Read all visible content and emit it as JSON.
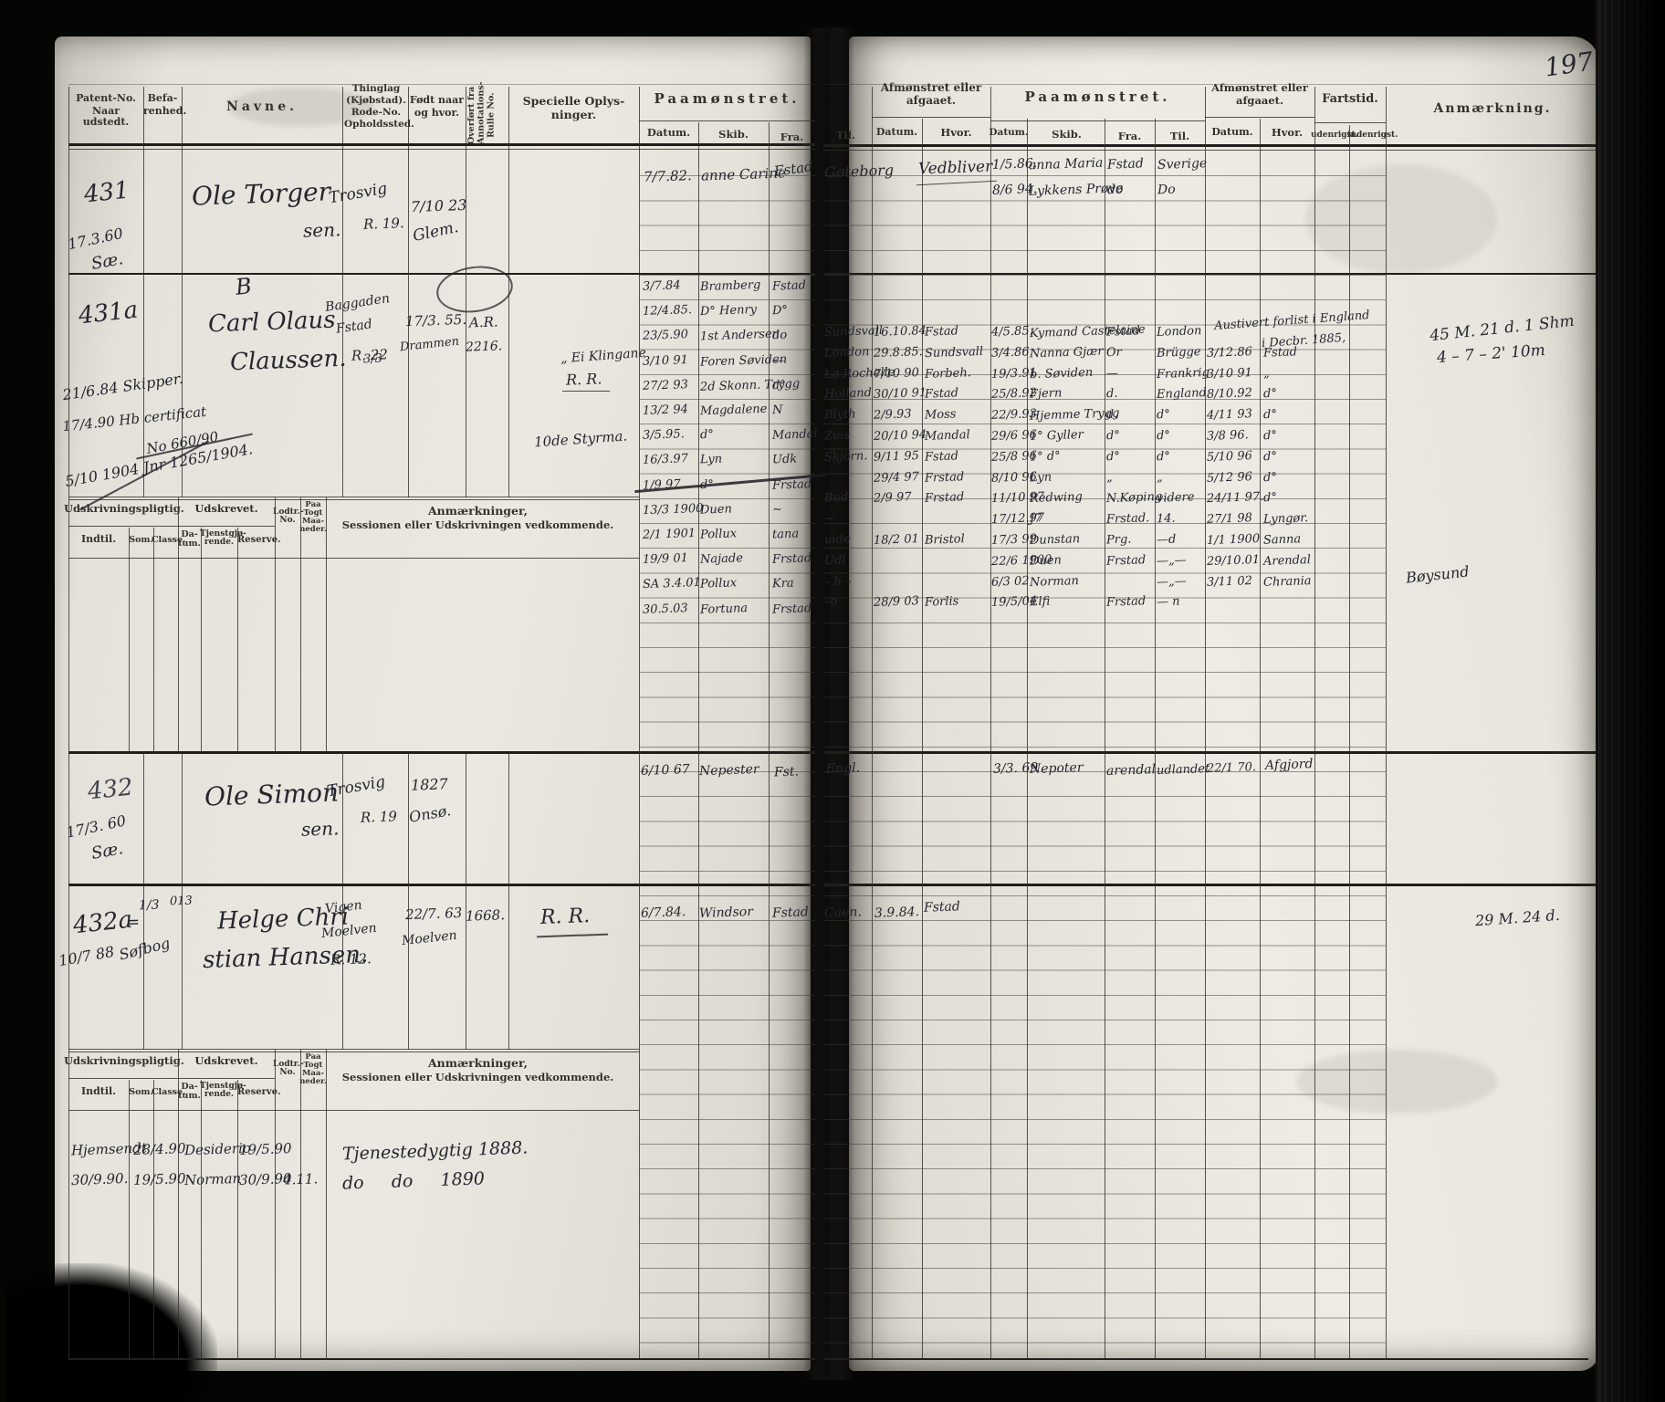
{
  "page": {
    "number": "197"
  },
  "left_header": {
    "patent_1": "Patent-No.",
    "patent_2": "Naar udstedt.",
    "befarenhed_1": "Befa-",
    "befarenhed_2": "renhed.",
    "navne": "Navne.",
    "thinglag_1": "Thinglag",
    "thinglag_2": "(Kjøbstad).",
    "thinglag_3": "Rode-No.",
    "thinglag_4": "Opholdssted.",
    "fodt_1": "Født naar",
    "fodt_2": "og hvor.",
    "overfort": "Overført fra Annotations- Rulle No.",
    "specielle_1": "Specielle Oplys-",
    "specielle_2": "ninger.",
    "paamonstret": "Paamønstret.",
    "datum": "Datum.",
    "skib": "Skib.",
    "fra": "Fra."
  },
  "right_header": {
    "til": "Til.",
    "afmonstret_1a": "Afmønstret eller",
    "afmonstret_1b": "afgaaet.",
    "datum_1": "Datum.",
    "hvor_1": "Hvor.",
    "paamonstret": "Paamønstret.",
    "datum_2": "Datum.",
    "skib": "Skib.",
    "fra": "Fra.",
    "til_2": "Til.",
    "afmonstret_2a": "Afmønstret eller",
    "afmonstret_2b": "afgaaet.",
    "datum_3": "Datum.",
    "hvor_2": "Hvor.",
    "fartstid": "Fartstid.",
    "udenrigst": "udenrigst.",
    "indenrigst": "indenrigst.",
    "anmaerkning": "Anmærkning."
  },
  "subtable_header": {
    "udskrivningspligtig": "Udskrivningspligtig.",
    "udskrevet": "Udskrevet.",
    "indtil": "Indtil.",
    "som": "Som.",
    "classe": "Classe.",
    "datum_1": "Da-",
    "datum_2": "tum.",
    "tjenst_1": "Tjenstgjø-",
    "tjenst_2": "rende.",
    "reserve": "Reserve.",
    "lodtr_1": "Lodtr.-",
    "lodtr_2": "No.",
    "togt_1": "Paa",
    "togt_2": "Togt",
    "togt_3": "Maa-",
    "togt_4": "neder.",
    "anm_1": "Anmærkninger,",
    "anm_2": "Sessionen eller Udskrivningen vedkommende."
  },
  "entries": {
    "e431": {
      "no": "431",
      "date": "17.3.60",
      "klasse": "Sæ.",
      "name_1": "Ole Torger",
      "name_2": "sen.",
      "residence_1": "Trosvig",
      "residence_2": "R. 19.",
      "born_1": "7/10 23",
      "born_2": "Glem.",
      "muster_datum": "7/7.82.",
      "muster_skib": "anne Carine",
      "muster_fra": "Fstad",
      "til": "Gøteborg",
      "afm_hvor": "Vedbliver",
      "p2": [
        {
          "d": "1/5.86.",
          "s": "anna Maria",
          "f": "Fstad",
          "t": "Sverige"
        },
        {
          "d": "8/6 94.",
          "s": "Lykkens Prøve",
          "f": "do",
          "t": "Do"
        }
      ]
    },
    "e431a": {
      "no": "431a",
      "badge": "B",
      "margin_1": "21/6.84 Skipper.",
      "margin_2": "17/4.90 Hb certificat",
      "margin_3": "No 660/90",
      "margin_4": "5/10 1904 Jnr 1265/1904.",
      "name_1": "Carl Olaus",
      "name_2": "Claussen.",
      "name_frac": "3/3",
      "residence_1": "Baggaden",
      "residence_2": "Fstad",
      "residence_3": "R. 22",
      "born_1": "17/3. 55.",
      "born_2": "Drammen",
      "overfort_1": "A.R.",
      "overfort_2": "2216.",
      "spec_1": "„ Ei Klingane",
      "spec_2": "R. R.",
      "spec_3": "10de Styrma.",
      "muster": [
        {
          "d": "3/7.84",
          "s": "Bramberg",
          "f": "Fstad"
        },
        {
          "d": "12/4.85.",
          "s": "D° Henry",
          "f": "D°"
        },
        {
          "d": "23/5.90",
          "s": "1st Andersen",
          "f": "do"
        },
        {
          "d": "3/10 91",
          "s": "Foren Søviden",
          "f": "—"
        },
        {
          "d": "27/2 93",
          "s": "2d Skonn. Trygg",
          "f": "d°"
        },
        {
          "d": "13/2 94",
          "s": "Magdalene",
          "f": "N"
        },
        {
          "d": "3/5.95.",
          "s": "d°",
          "f": "Mandal"
        },
        {
          "d": "16/3.97",
          "s": "Lyn",
          "f": "Udk"
        },
        {
          "d": "1/9 97",
          "s": "d°",
          "f": "Frstad"
        },
        {
          "d": "13/3 1900",
          "s": "Duen",
          "f": "~"
        },
        {
          "d": "2/1 1901",
          "s": "Pollux",
          "f": "tana"
        },
        {
          "d": "19/9 01",
          "s": "Najade",
          "f": "Frstad"
        },
        {
          "d": "SA 3.4.01",
          "s": "Pollux",
          "f": "Kra"
        },
        {
          "d": "30.5.03",
          "s": "Fortuna",
          "f": "Frstad"
        }
      ],
      "right_rows": [
        {
          "til": "Sundsvall",
          "a1d": "16.10.84",
          "a1h": "Fstad",
          "pd": "4/5.85.",
          "ps": "Kymand Castelaine",
          "pf": "Fstad",
          "pt": "London",
          "a2d": "",
          "a2h": ""
        },
        {
          "til": "London",
          "a1d": "29.8.85.",
          "a1h": "Sundsvall",
          "pd": "3/4.86.",
          "ps": "Nanna Gjær",
          "pf": "Or",
          "pt": "Brügge",
          "a2d": "3/12.86",
          "a2h": "Fstad"
        },
        {
          "til": "La Rochelle",
          "a1d": "7/10 90",
          "a1h": "Forbeh.",
          "pd": "19/3.91",
          "ps": "b. Søviden",
          "pf": "—",
          "pt": "Frankrig",
          "a2d": "3/10 91",
          "a2h": "„"
        },
        {
          "til": "Holland",
          "a1d": "30/10 91",
          "a1h": "Fstad",
          "pd": "25/8.92",
          "ps": "Fjern",
          "pf": "d.",
          "pt": "England",
          "a2d": "8/10.92",
          "a2h": "d°"
        },
        {
          "til": "Blyth",
          "a1d": "2/9.93",
          "a1h": "Moss",
          "pd": "22/9.93",
          "ps": "Hjemme Trygg",
          "pf": "d.",
          "pt": "d°",
          "a2d": "4/11 93",
          "a2h": "d°"
        },
        {
          "til": "Zuis",
          "a1d": "20/10 94",
          "a1h": "Mandal",
          "pd": "29/6 96",
          "ps": "1° Gyller",
          "pf": "d°",
          "pt": "d°",
          "a2d": "3/8 96.",
          "a2h": "d°"
        },
        {
          "til": "Skjörn.",
          "a1d": "9/11 95",
          "a1h": "Fstad",
          "pd": "25/8 96",
          "ps": "1° d°",
          "pf": "d°",
          "pt": "d°",
          "a2d": "5/10 96",
          "a2h": "d°"
        },
        {
          "til": "",
          "a1d": "29/4 97",
          "a1h": "Frstad",
          "pd": "8/10 96",
          "ps": "Lyn",
          "pf": "„",
          "pt": "„",
          "a2d": "5/12 96",
          "a2h": "d°"
        },
        {
          "til": "Bud",
          "a1d": "2/9 97",
          "a1h": "Frstad",
          "pd": "11/10 97",
          "ps": "Redwing",
          "pf": "N.Køping",
          "pt": "videre",
          "a2d": "24/11 97.",
          "a2h": "d°"
        },
        {
          "til": "~",
          "a1d": "",
          "a1h": "",
          "pd": "17/12.97",
          "ps": "J7",
          "pf": "Frstad.",
          "pt": "14.",
          "a2d": "27/1 98",
          "a2h": "Lyngør."
        },
        {
          "til": "uide",
          "a1d": "18/2 01",
          "a1h": "Bristol",
          "pd": "17/3 99",
          "ps": "Dunstan",
          "pf": "Prg.",
          "pt": "—d",
          "a2d": "1/1 1900",
          "a2h": "Sanna"
        },
        {
          "til": "Udl",
          "a1d": "",
          "a1h": "",
          "pd": "22/6 1900",
          "ps": "Duen",
          "pf": "Frstad",
          "pt": "—„—",
          "a2d": "29/10.01",
          "a2h": "Arendal"
        },
        {
          "til": "– h –",
          "a1d": "",
          "a1h": "",
          "pd": "6/3 02",
          "ps": "Norman",
          "pf": "",
          "pt": "—„—",
          "a2d": "3/11 02",
          "a2h": "Chrania"
        },
        {
          "til": "–o",
          "a1d": "28/9 03",
          "a1h": "Forlis",
          "pd": "19/5/04",
          "ps": "Elfi",
          "pf": "Frstad",
          "pt": "— n",
          "a2d": "",
          "a2h": ""
        }
      ],
      "wreck_note_1": "Austivert forlist i England",
      "wreck_note_2": "i Decbr. 1885,",
      "anm_1": "45 M. 21 d. 1 Shm",
      "anm_2": "4 – 7 – 2' 10m",
      "anm_3": "Bøysund"
    },
    "e432": {
      "no": "432",
      "date": "17/3. 60",
      "klasse": "Sæ.",
      "name_1": "Ole Simon",
      "name_2": "sen.",
      "residence_1": "Trosvig",
      "residence_2": "R. 19",
      "born_1": "1827",
      "born_2": "Onsø.",
      "muster_datum": "6/10 67",
      "muster_skib": "Nepester",
      "muster_fra": "Fst.",
      "til": "Engl.",
      "p2d": "3/3. 69",
      "p2s": "Nepoter",
      "p2f": "arendal",
      "p2t": "udlandet",
      "a2d": "22/1 70.",
      "a2h": "Afgjord"
    },
    "e432a": {
      "no": "432a",
      "eq": "=",
      "frac": "1/3",
      "margin_1": "10/7 88",
      "margin_2": "Søfbog",
      "badge": "013",
      "name_1": "Helge Chri",
      "name_2": "stian Hansen.",
      "residence_1": "Vigen",
      "residence_2": "Moelven",
      "residence_3": "R. 12.",
      "born_1": "22/7. 63",
      "born_2": "Moelven",
      "overfort": "1668.",
      "spec": "R. R.",
      "muster_datum": "6/7.84.",
      "muster_skib": "Windsor",
      "muster_fra": "Fstad",
      "til": "Caen.",
      "a1d": "3.9.84.",
      "a1h": "Fstad",
      "anm": "29 M. 24 d."
    }
  },
  "bottom_rows": [
    {
      "indtil": "Hjemsendt",
      "datum": "28/4.90",
      "tjenstgjorende": "Desiderio",
      "reserve": "19/5.90",
      "lodtr": "",
      "anm": "Tjenestedygtig 1888."
    },
    {
      "indtil": "30/9.90.",
      "datum": "19/5.90",
      "tjenstgjorende": "Norman",
      "reserve": "30/9.90",
      "lodtr": "4.11.",
      "anm": "do     do     1890"
    }
  ]
}
